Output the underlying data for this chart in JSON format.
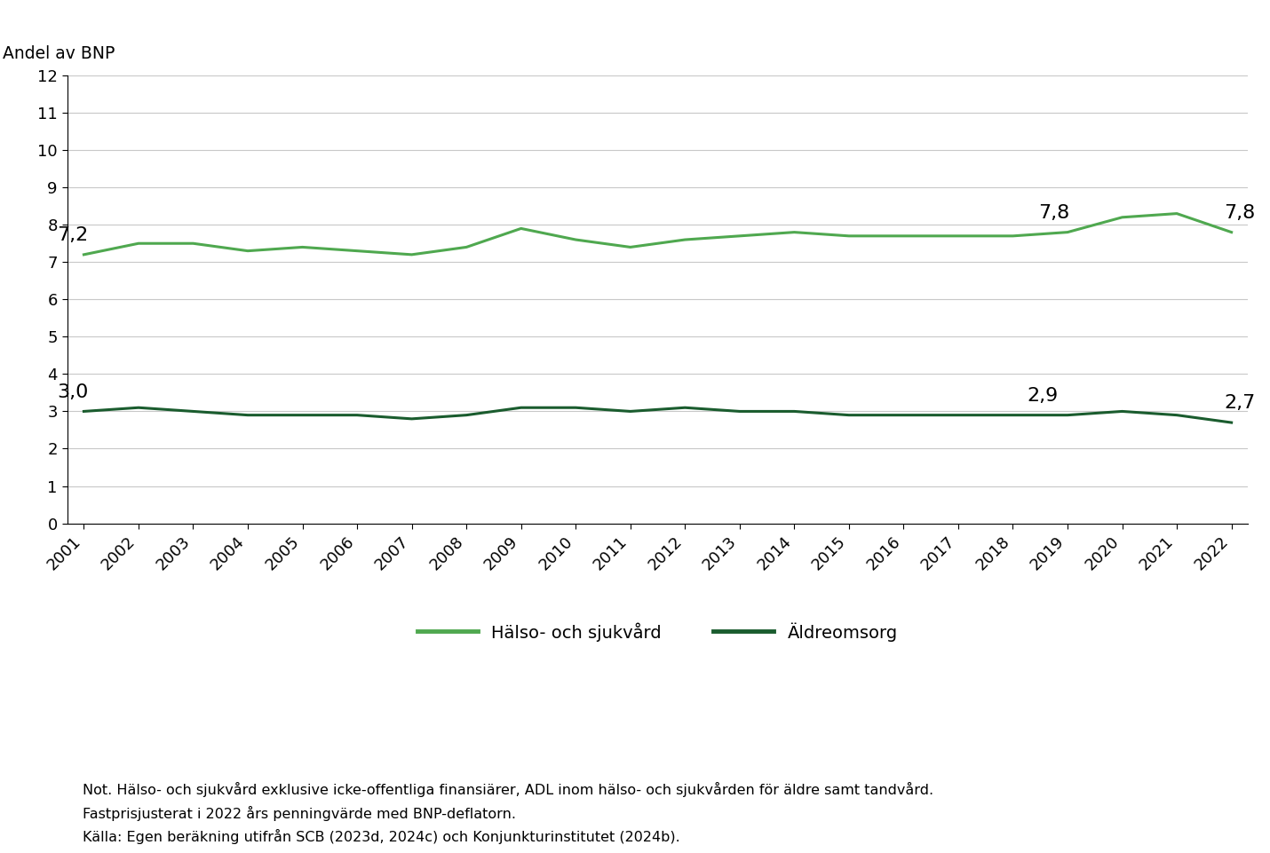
{
  "years": [
    2001,
    2002,
    2003,
    2004,
    2005,
    2006,
    2007,
    2008,
    2009,
    2010,
    2011,
    2012,
    2013,
    2014,
    2015,
    2016,
    2017,
    2018,
    2019,
    2020,
    2021,
    2022
  ],
  "halso_sjukvard": [
    7.2,
    7.5,
    7.5,
    7.3,
    7.4,
    7.3,
    7.2,
    7.4,
    7.9,
    7.6,
    7.4,
    7.6,
    7.7,
    7.8,
    7.7,
    7.7,
    7.7,
    7.7,
    7.8,
    8.2,
    8.3,
    7.8
  ],
  "aldreomsorg": [
    3.0,
    3.1,
    3.0,
    2.9,
    2.9,
    2.9,
    2.8,
    2.9,
    3.1,
    3.1,
    3.0,
    3.1,
    3.0,
    3.0,
    2.9,
    2.9,
    2.9,
    2.9,
    2.9,
    3.0,
    2.9,
    2.7
  ],
  "halso_color": "#4fa84f",
  "aldro_color": "#1a5c2e",
  "ylabel": "Andel av BNP",
  "ylim_min": 0,
  "ylim_max": 12,
  "yticks": [
    0,
    1,
    2,
    3,
    4,
    5,
    6,
    7,
    8,
    9,
    10,
    11,
    12
  ],
  "legend_halso": "Hälso- och sjukvård",
  "legend_aldro": "Äldreomsorg",
  "note_text": "Not. Hälso- och sjukvård exklusive icke-offentliga finansiärer, ADL inom hälso- och sjukvården för äldre samt tandvård.\nFastprisjusterat i 2022 års penningvärde med BNP-deflatorn.\nKälla: Egen beräkning utifrån SCB (2023d, 2024c) och Konjunkturinstitutet (2024b).",
  "annotations_halso": [
    {
      "year": 2001,
      "value": 7.2,
      "text": "7,2",
      "xoffset": -0.2,
      "yoffset": 0.28
    },
    {
      "year": 2019,
      "value": 7.8,
      "text": "7,8",
      "xoffset": -0.25,
      "yoffset": 0.28
    },
    {
      "year": 2022,
      "value": 7.8,
      "text": "7,8",
      "xoffset": 0.15,
      "yoffset": 0.28
    }
  ],
  "annotations_aldro": [
    {
      "year": 2001,
      "value": 3.0,
      "text": "3,0",
      "xoffset": -0.2,
      "yoffset": 0.28
    },
    {
      "year": 2019,
      "value": 2.9,
      "text": "2,9",
      "xoffset": -0.45,
      "yoffset": 0.28
    },
    {
      "year": 2022,
      "value": 2.7,
      "text": "2,7",
      "xoffset": 0.15,
      "yoffset": 0.28
    }
  ],
  "bg_color": "#ffffff",
  "grid_color": "#c8c8c8",
  "line_width": 2.2,
  "tick_fontsize": 13,
  "annotation_fontsize": 16,
  "note_fontsize": 11.5
}
